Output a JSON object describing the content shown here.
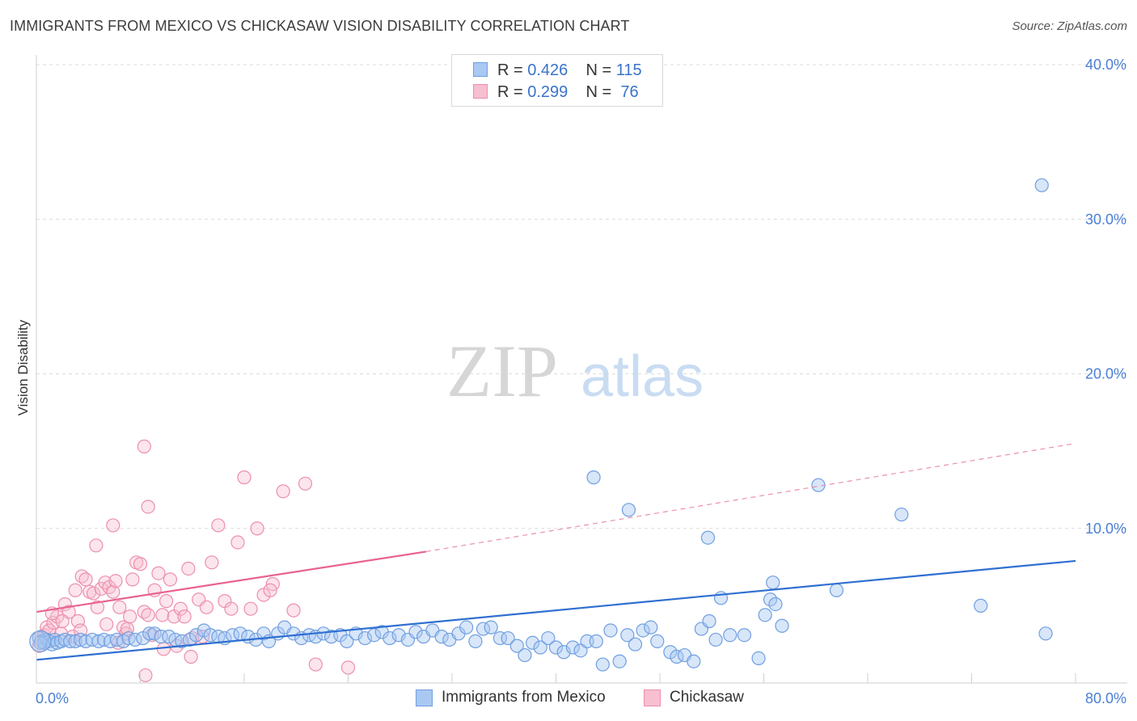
{
  "title": "IMMIGRANTS FROM MEXICO VS CHICKASAW VISION DISABILITY CORRELATION CHART",
  "source": "Source: ZipAtlas.com",
  "watermark": {
    "zip": "ZIP",
    "atlas": "atlas"
  },
  "legend": {
    "rows": [
      {
        "r_label": "R = ",
        "r_value": "0.426",
        "n_label": "N = ",
        "n_value": "115",
        "color": "#a9c8f2",
        "border": "#6f9fe0"
      },
      {
        "r_label": "R = ",
        "r_value": "0.299",
        "n_label": "N = ",
        "n_value": " 76",
        "color": "#f7bfd0",
        "border": "#ec8fae"
      }
    ]
  },
  "bottom_legend": {
    "mexico": "Immigrants from Mexico",
    "chickasaw": "Chickasaw"
  },
  "chart_data": {
    "type": "scatter",
    "xlabel": "",
    "ylabel": "Vision Disability",
    "xlim": [
      0,
      80
    ],
    "ylim": [
      0,
      40
    ],
    "x_tick_labels": [
      "0.0%",
      "80.0%"
    ],
    "y_ticks": [
      10,
      20,
      30,
      40
    ],
    "y_tick_labels": [
      "10.0%",
      "20.0%",
      "30.0%",
      "40.0%"
    ],
    "grid": true,
    "series": [
      {
        "name": "Immigrants from Mexico",
        "color": "#6f9fe0",
        "fill": "rgba(169,200,242,0.45)",
        "trend": {
          "x0": 0,
          "y0": 1.5,
          "x1": 80,
          "y1": 7.9
        },
        "points": [
          [
            0.2,
            2.9
          ],
          [
            0.4,
            2.7
          ],
          [
            0.6,
            2.6
          ],
          [
            0.8,
            2.8
          ],
          [
            1.0,
            2.7
          ],
          [
            1.2,
            2.5
          ],
          [
            1.4,
            2.8
          ],
          [
            1.6,
            2.6
          ],
          [
            1.9,
            2.7
          ],
          [
            2.2,
            2.8
          ],
          [
            2.6,
            2.7
          ],
          [
            3.0,
            2.7
          ],
          [
            3.4,
            2.8
          ],
          [
            3.8,
            2.7
          ],
          [
            4.3,
            2.8
          ],
          [
            4.8,
            2.7
          ],
          [
            5.2,
            2.8
          ],
          [
            5.7,
            2.7
          ],
          [
            6.2,
            2.8
          ],
          [
            6.7,
            2.7
          ],
          [
            7.1,
            2.9
          ],
          [
            7.6,
            2.8
          ],
          [
            8.2,
            2.9
          ],
          [
            8.7,
            3.2
          ],
          [
            9.1,
            3.2
          ],
          [
            9.6,
            3.0
          ],
          [
            10.2,
            3.0
          ],
          [
            10.7,
            2.8
          ],
          [
            11.2,
            2.7
          ],
          [
            11.8,
            2.8
          ],
          [
            12.3,
            3.1
          ],
          [
            12.9,
            3.4
          ],
          [
            13.4,
            3.1
          ],
          [
            14.0,
            3.0
          ],
          [
            14.5,
            2.9
          ],
          [
            15.1,
            3.1
          ],
          [
            15.7,
            3.2
          ],
          [
            16.3,
            3.0
          ],
          [
            16.9,
            2.8
          ],
          [
            17.5,
            3.2
          ],
          [
            17.9,
            2.7
          ],
          [
            18.6,
            3.2
          ],
          [
            19.1,
            3.6
          ],
          [
            19.8,
            3.2
          ],
          [
            20.4,
            2.9
          ],
          [
            21.0,
            3.1
          ],
          [
            21.5,
            3.0
          ],
          [
            22.1,
            3.2
          ],
          [
            22.7,
            3.0
          ],
          [
            23.4,
            3.1
          ],
          [
            23.9,
            2.7
          ],
          [
            24.6,
            3.2
          ],
          [
            25.3,
            2.9
          ],
          [
            26.0,
            3.1
          ],
          [
            26.6,
            3.3
          ],
          [
            27.2,
            2.9
          ],
          [
            27.9,
            3.1
          ],
          [
            28.6,
            2.8
          ],
          [
            29.2,
            3.3
          ],
          [
            29.8,
            3.0
          ],
          [
            30.5,
            3.4
          ],
          [
            31.2,
            3.0
          ],
          [
            31.8,
            2.8
          ],
          [
            32.5,
            3.2
          ],
          [
            33.1,
            3.6
          ],
          [
            33.8,
            2.7
          ],
          [
            34.4,
            3.5
          ],
          [
            35.0,
            3.6
          ],
          [
            35.7,
            2.9
          ],
          [
            36.3,
            2.9
          ],
          [
            37.0,
            2.4
          ],
          [
            37.6,
            1.8
          ],
          [
            38.2,
            2.6
          ],
          [
            38.8,
            2.3
          ],
          [
            39.4,
            2.9
          ],
          [
            40.0,
            2.3
          ],
          [
            40.6,
            2.0
          ],
          [
            41.3,
            2.3
          ],
          [
            41.9,
            2.1
          ],
          [
            42.4,
            2.7
          ],
          [
            43.1,
            2.7
          ],
          [
            43.6,
            1.2
          ],
          [
            44.2,
            3.4
          ],
          [
            44.9,
            1.4
          ],
          [
            45.5,
            3.1
          ],
          [
            46.1,
            2.5
          ],
          [
            46.7,
            3.4
          ],
          [
            47.3,
            3.6
          ],
          [
            47.8,
            2.7
          ],
          [
            48.8,
            2.0
          ],
          [
            49.3,
            1.7
          ],
          [
            49.9,
            1.8
          ],
          [
            50.6,
            1.4
          ],
          [
            51.2,
            3.5
          ],
          [
            51.8,
            4.0
          ],
          [
            52.3,
            2.8
          ],
          [
            52.7,
            5.5
          ],
          [
            53.4,
            3.1
          ],
          [
            54.5,
            3.1
          ],
          [
            55.6,
            1.6
          ],
          [
            56.1,
            4.4
          ],
          [
            56.5,
            5.4
          ],
          [
            56.7,
            6.5
          ],
          [
            56.9,
            5.1
          ],
          [
            57.4,
            3.7
          ],
          [
            45.6,
            11.2
          ],
          [
            42.9,
            13.3
          ],
          [
            51.7,
            9.4
          ],
          [
            60.2,
            12.8
          ],
          [
            66.6,
            10.9
          ],
          [
            61.6,
            6.0
          ],
          [
            72.7,
            5.0
          ],
          [
            77.7,
            3.2
          ],
          [
            77.4,
            32.2
          ],
          [
            0.3,
            2.6
          ]
        ]
      },
      {
        "name": "Chickasaw",
        "color": "#ec8fae",
        "fill": "rgba(247,191,208,0.4)",
        "trend": {
          "x0": 0,
          "y0": 4.6,
          "x1": 30,
          "y1": 8.5
        },
        "trend_dashed": {
          "x0": 30,
          "y0": 8.5,
          "x1": 80,
          "y1": 15.5
        },
        "points": [
          [
            0.2,
            2.4
          ],
          [
            0.4,
            3.0
          ],
          [
            0.6,
            3.1
          ],
          [
            0.8,
            3.6
          ],
          [
            1.0,
            3.4
          ],
          [
            1.3,
            3.9
          ],
          [
            1.6,
            4.3
          ],
          [
            1.9,
            3.2
          ],
          [
            2.2,
            5.1
          ],
          [
            2.5,
            4.6
          ],
          [
            2.8,
            3.0
          ],
          [
            3.0,
            6.0
          ],
          [
            3.2,
            4.0
          ],
          [
            3.5,
            6.9
          ],
          [
            3.8,
            6.7
          ],
          [
            4.1,
            5.9
          ],
          [
            4.4,
            5.8
          ],
          [
            4.7,
            4.9
          ],
          [
            5.0,
            6.1
          ],
          [
            5.3,
            6.5
          ],
          [
            5.6,
            6.2
          ],
          [
            5.9,
            5.9
          ],
          [
            6.1,
            6.6
          ],
          [
            6.4,
            4.9
          ],
          [
            6.7,
            3.6
          ],
          [
            6.9,
            3.2
          ],
          [
            7.2,
            4.3
          ],
          [
            7.4,
            6.7
          ],
          [
            7.7,
            7.8
          ],
          [
            8.0,
            7.7
          ],
          [
            8.3,
            4.6
          ],
          [
            8.6,
            4.4
          ],
          [
            8.9,
            3.1
          ],
          [
            9.1,
            6.0
          ],
          [
            9.4,
            7.1
          ],
          [
            9.7,
            4.4
          ],
          [
            10.0,
            5.3
          ],
          [
            10.3,
            6.7
          ],
          [
            10.6,
            4.3
          ],
          [
            10.8,
            2.4
          ],
          [
            11.1,
            4.8
          ],
          [
            11.4,
            4.3
          ],
          [
            11.7,
            7.4
          ],
          [
            12.0,
            2.9
          ],
          [
            12.5,
            5.4
          ],
          [
            12.8,
            3.0
          ],
          [
            13.1,
            4.9
          ],
          [
            13.5,
            7.8
          ],
          [
            14.0,
            10.2
          ],
          [
            14.5,
            5.3
          ],
          [
            15.0,
            4.8
          ],
          [
            15.5,
            9.1
          ],
          [
            16.0,
            13.3
          ],
          [
            16.5,
            4.8
          ],
          [
            17.0,
            10.0
          ],
          [
            17.5,
            5.7
          ],
          [
            18.2,
            6.4
          ],
          [
            19.0,
            12.4
          ],
          [
            19.8,
            4.7
          ],
          [
            20.7,
            12.9
          ],
          [
            21.5,
            1.2
          ],
          [
            4.6,
            8.9
          ],
          [
            5.9,
            10.2
          ],
          [
            8.6,
            11.4
          ],
          [
            8.3,
            15.3
          ],
          [
            5.4,
            3.8
          ],
          [
            3.4,
            3.4
          ],
          [
            1.2,
            4.5
          ],
          [
            2.0,
            4.0
          ],
          [
            6.3,
            2.6
          ],
          [
            7.0,
            3.5
          ],
          [
            9.8,
            2.2
          ],
          [
            11.9,
            1.7
          ],
          [
            18.0,
            6.0
          ],
          [
            24.0,
            1.0
          ],
          [
            8.4,
            0.5
          ]
        ]
      }
    ]
  }
}
